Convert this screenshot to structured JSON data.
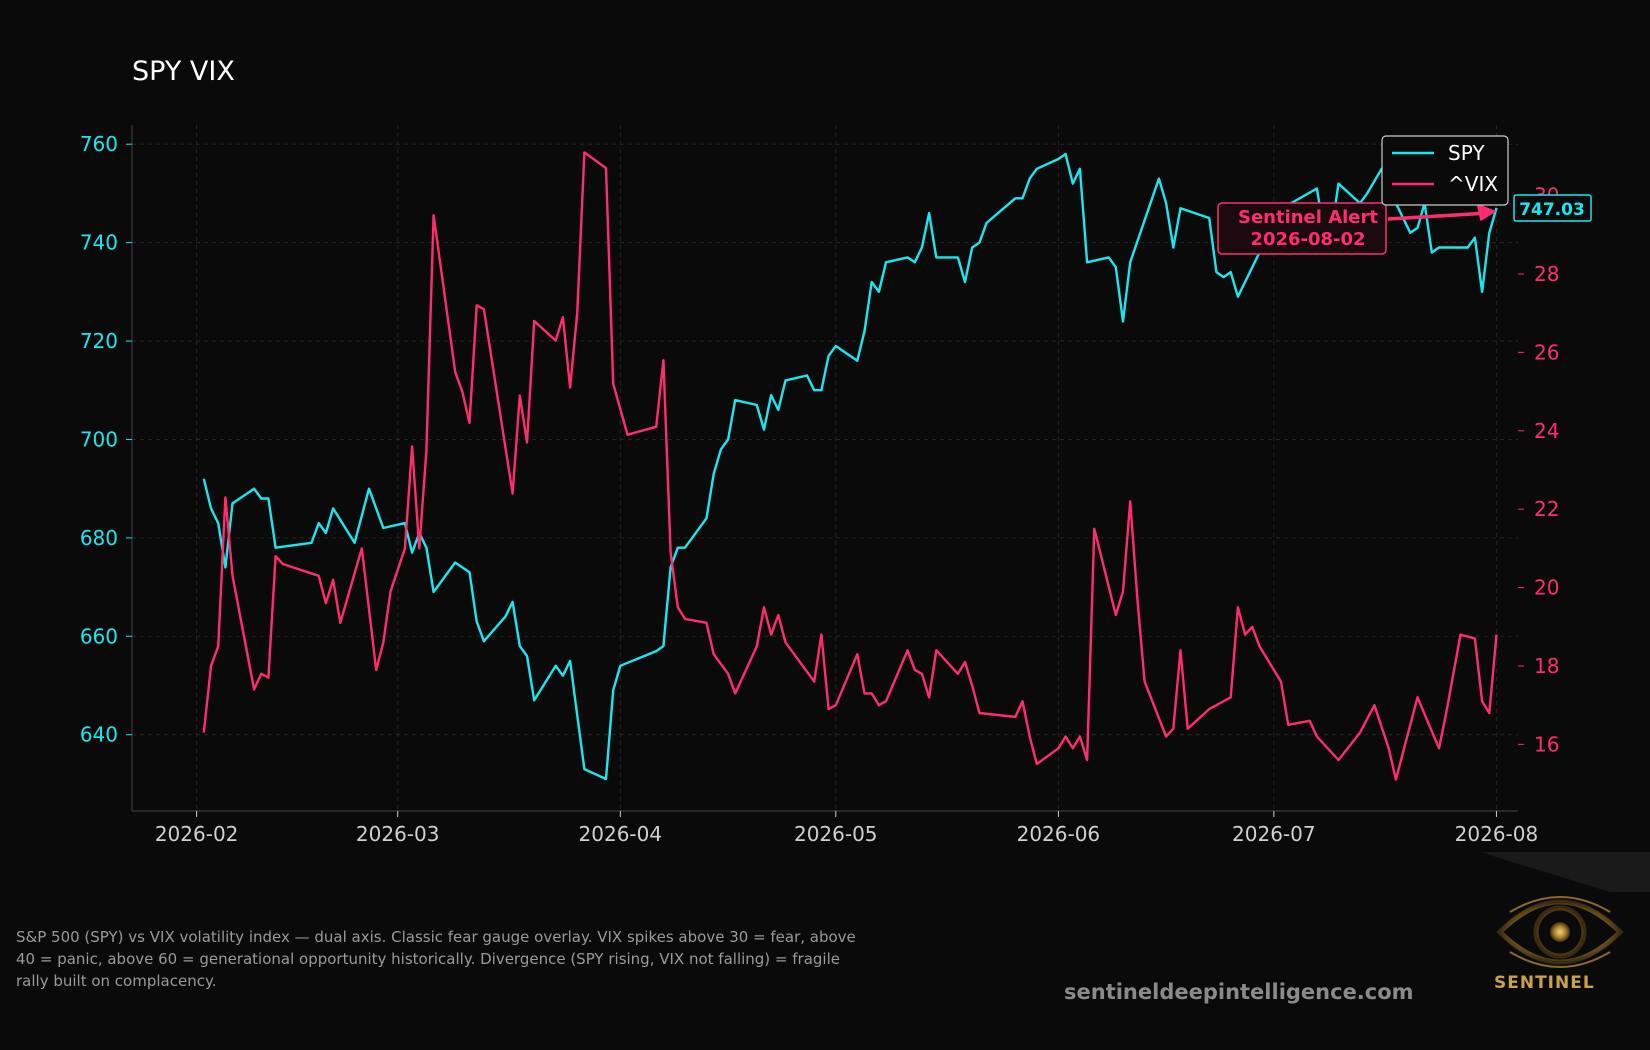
{
  "colors": {
    "spy": "#19e8f0",
    "vix": "#ff2d6e",
    "axis": "#3a3a3a",
    "grid": "#262626",
    "text": "#d0d0d0",
    "bg": "#0a0a0a"
  },
  "header": {
    "title": "SPY VIX"
  },
  "footer": {
    "caption": "S&P 500 (SPY) vs VIX volatility index — dual axis. Classic fear gauge overlay. VIX spikes above 30 = fear, above 40 = panic, above 60 = generational opportunity historically. Divergence (SPY rising, VIX not falling) = fragile rally built on complacency.",
    "site": "sentineldeepintelligence.com",
    "brand": "SENTINEL"
  },
  "chart_data": {
    "type": "line",
    "title": "SPY VIX",
    "legend_position": "top-right",
    "grid": true,
    "x_ticks": [
      "2026-02",
      "2026-03",
      "2026-04",
      "2026-05",
      "2026-06",
      "2026-07",
      "2026-08"
    ],
    "x_range": [
      "2026-01-23",
      "2026-08-04"
    ],
    "y_left": {
      "ticks": [
        640,
        660,
        680,
        700,
        720,
        740,
        760
      ],
      "range": [
        624.5,
        763.9
      ]
    },
    "y_right": {
      "ticks": [
        16,
        18,
        20,
        22,
        24,
        26,
        28,
        30
      ],
      "range": [
        14.3,
        31.8
      ]
    },
    "annotation": {
      "line1": "Sentinel Alert",
      "line2": "2026-08-02",
      "arrow_to": [
        "2026-08-01",
        29.6
      ]
    },
    "last_value_label": "747.03",
    "series": [
      {
        "name": "SPY",
        "axis": "left",
        "data": [
          [
            "2026-02-02",
            692
          ],
          [
            "2026-02-03",
            686
          ],
          [
            "2026-02-04",
            683
          ],
          [
            "2026-02-05",
            674
          ],
          [
            "2026-02-06",
            687
          ],
          [
            "2026-02-09",
            690
          ],
          [
            "2026-02-10",
            688
          ],
          [
            "2026-02-11",
            688
          ],
          [
            "2026-02-12",
            678
          ],
          [
            "2026-02-17",
            679
          ],
          [
            "2026-02-18",
            683
          ],
          [
            "2026-02-19",
            681
          ],
          [
            "2026-02-20",
            686
          ],
          [
            "2026-02-23",
            679
          ],
          [
            "2026-02-25",
            690
          ],
          [
            "2026-02-27",
            682
          ],
          [
            "2026-03-02",
            683
          ],
          [
            "2026-03-03",
            677
          ],
          [
            "2026-03-04",
            681
          ],
          [
            "2026-03-05",
            678
          ],
          [
            "2026-03-06",
            669
          ],
          [
            "2026-03-09",
            675
          ],
          [
            "2026-03-10",
            674
          ],
          [
            "2026-03-11",
            673
          ],
          [
            "2026-03-12",
            663
          ],
          [
            "2026-03-13",
            659
          ],
          [
            "2026-03-16",
            664
          ],
          [
            "2026-03-17",
            667
          ],
          [
            "2026-03-18",
            658
          ],
          [
            "2026-03-19",
            656
          ],
          [
            "2026-03-20",
            647
          ],
          [
            "2026-03-23",
            654
          ],
          [
            "2026-03-24",
            652
          ],
          [
            "2026-03-25",
            655
          ],
          [
            "2026-03-26",
            644
          ],
          [
            "2026-03-27",
            633
          ],
          [
            "2026-03-30",
            631
          ],
          [
            "2026-03-31",
            649
          ],
          [
            "2026-04-01",
            654
          ],
          [
            "2026-04-06",
            657
          ],
          [
            "2026-04-07",
            658
          ],
          [
            "2026-04-08",
            674
          ],
          [
            "2026-04-09",
            678
          ],
          [
            "2026-04-10",
            678
          ],
          [
            "2026-04-13",
            684
          ],
          [
            "2026-04-14",
            693
          ],
          [
            "2026-04-15",
            698
          ],
          [
            "2026-04-16",
            700
          ],
          [
            "2026-04-17",
            708
          ],
          [
            "2026-04-20",
            707
          ],
          [
            "2026-04-21",
            702
          ],
          [
            "2026-04-22",
            709
          ],
          [
            "2026-04-23",
            706
          ],
          [
            "2026-04-24",
            712
          ],
          [
            "2026-04-27",
            713
          ],
          [
            "2026-04-28",
            710
          ],
          [
            "2026-04-29",
            710
          ],
          [
            "2026-04-30",
            717
          ],
          [
            "2026-05-01",
            719
          ],
          [
            "2026-05-04",
            716
          ],
          [
            "2026-05-05",
            722
          ],
          [
            "2026-05-06",
            732
          ],
          [
            "2026-05-07",
            730
          ],
          [
            "2026-05-08",
            736
          ],
          [
            "2026-05-11",
            737
          ],
          [
            "2026-05-12",
            736
          ],
          [
            "2026-05-13",
            739
          ],
          [
            "2026-05-14",
            746
          ],
          [
            "2026-05-15",
            737
          ],
          [
            "2026-05-18",
            737
          ],
          [
            "2026-05-19",
            732
          ],
          [
            "2026-05-20",
            739
          ],
          [
            "2026-05-21",
            740
          ],
          [
            "2026-05-22",
            744
          ],
          [
            "2026-05-26",
            749
          ],
          [
            "2026-05-27",
            749
          ],
          [
            "2026-05-28",
            753
          ],
          [
            "2026-05-29",
            755
          ],
          [
            "2026-06-01",
            757
          ],
          [
            "2026-06-02",
            758
          ],
          [
            "2026-06-03",
            752
          ],
          [
            "2026-06-04",
            755
          ],
          [
            "2026-06-05",
            736
          ],
          [
            "2026-06-08",
            737
          ],
          [
            "2026-06-09",
            735
          ],
          [
            "2026-06-10",
            724
          ],
          [
            "2026-06-11",
            736
          ],
          [
            "2026-06-15",
            753
          ],
          [
            "2026-06-16",
            748
          ],
          [
            "2026-06-17",
            739
          ],
          [
            "2026-06-18",
            747
          ],
          [
            "2026-06-22",
            745
          ],
          [
            "2026-06-23",
            734
          ],
          [
            "2026-06-24",
            733
          ],
          [
            "2026-06-25",
            734
          ],
          [
            "2026-06-26",
            729
          ],
          [
            "2026-06-29",
            738
          ],
          [
            "2026-06-30",
            744
          ],
          [
            "2026-07-01",
            746
          ],
          [
            "2026-07-07",
            751
          ],
          [
            "2026-07-08",
            742
          ],
          [
            "2026-07-09",
            742
          ],
          [
            "2026-07-10",
            752
          ],
          [
            "2026-07-13",
            748
          ],
          [
            "2026-07-14",
            750
          ],
          [
            "2026-07-16",
            755
          ],
          [
            "2026-07-17",
            751
          ],
          [
            "2026-07-20",
            742
          ],
          [
            "2026-07-21",
            743
          ],
          [
            "2026-07-22",
            748
          ],
          [
            "2026-07-23",
            738
          ],
          [
            "2026-07-24",
            739
          ],
          [
            "2026-07-28",
            739
          ],
          [
            "2026-07-29",
            741
          ],
          [
            "2026-07-30",
            730
          ],
          [
            "2026-07-31",
            742
          ],
          [
            "2026-08-01",
            747.03
          ]
        ]
      },
      {
        "name": "^VIX",
        "axis": "right",
        "data": [
          [
            "2026-02-02",
            16.3
          ],
          [
            "2026-02-03",
            18.0
          ],
          [
            "2026-02-04",
            18.5
          ],
          [
            "2026-02-05",
            22.3
          ],
          [
            "2026-02-06",
            20.3
          ],
          [
            "2026-02-09",
            17.4
          ],
          [
            "2026-02-10",
            17.8
          ],
          [
            "2026-02-11",
            17.7
          ],
          [
            "2026-02-12",
            20.8
          ],
          [
            "2026-02-13",
            20.6
          ],
          [
            "2026-02-18",
            20.3
          ],
          [
            "2026-02-19",
            19.6
          ],
          [
            "2026-02-20",
            20.2
          ],
          [
            "2026-02-21",
            19.1
          ],
          [
            "2026-02-24",
            21.0
          ],
          [
            "2026-02-26",
            17.9
          ],
          [
            "2026-02-27",
            18.6
          ],
          [
            "2026-02-28",
            19.9
          ],
          [
            "2026-03-02",
            21.0
          ],
          [
            "2026-03-03",
            23.6
          ],
          [
            "2026-03-04",
            21.0
          ],
          [
            "2026-03-05",
            23.5
          ],
          [
            "2026-03-06",
            29.5
          ],
          [
            "2026-03-09",
            25.5
          ],
          [
            "2026-03-10",
            25.0
          ],
          [
            "2026-03-11",
            24.2
          ],
          [
            "2026-03-12",
            27.2
          ],
          [
            "2026-03-13",
            27.1
          ],
          [
            "2026-03-17",
            22.4
          ],
          [
            "2026-03-18",
            24.9
          ],
          [
            "2026-03-19",
            23.7
          ],
          [
            "2026-03-20",
            26.8
          ],
          [
            "2026-03-23",
            26.3
          ],
          [
            "2026-03-24",
            26.9
          ],
          [
            "2026-03-25",
            25.1
          ],
          [
            "2026-03-26",
            27.0
          ],
          [
            "2026-03-27",
            31.1
          ],
          [
            "2026-03-30",
            30.7
          ],
          [
            "2026-03-31",
            25.2
          ],
          [
            "2026-04-02",
            23.9
          ],
          [
            "2026-04-06",
            24.1
          ],
          [
            "2026-04-07",
            25.8
          ],
          [
            "2026-04-08",
            20.9
          ],
          [
            "2026-04-09",
            19.5
          ],
          [
            "2026-04-10",
            19.2
          ],
          [
            "2026-04-13",
            19.1
          ],
          [
            "2026-04-14",
            18.3
          ],
          [
            "2026-04-16",
            17.8
          ],
          [
            "2026-04-17",
            17.3
          ],
          [
            "2026-04-20",
            18.5
          ],
          [
            "2026-04-21",
            19.5
          ],
          [
            "2026-04-22",
            18.8
          ],
          [
            "2026-04-23",
            19.3
          ],
          [
            "2026-04-24",
            18.6
          ],
          [
            "2026-04-28",
            17.6
          ],
          [
            "2026-04-29",
            18.8
          ],
          [
            "2026-04-30",
            16.9
          ],
          [
            "2026-05-01",
            17.0
          ],
          [
            "2026-05-04",
            18.3
          ],
          [
            "2026-05-05",
            17.3
          ],
          [
            "2026-05-06",
            17.3
          ],
          [
            "2026-05-07",
            17.0
          ],
          [
            "2026-05-08",
            17.1
          ],
          [
            "2026-05-11",
            18.4
          ],
          [
            "2026-05-12",
            17.9
          ],
          [
            "2026-05-13",
            17.8
          ],
          [
            "2026-05-14",
            17.2
          ],
          [
            "2026-05-15",
            18.4
          ],
          [
            "2026-05-18",
            17.8
          ],
          [
            "2026-05-19",
            18.1
          ],
          [
            "2026-05-20",
            17.5
          ],
          [
            "2026-05-21",
            16.8
          ],
          [
            "2026-05-26",
            16.7
          ],
          [
            "2026-05-27",
            17.1
          ],
          [
            "2026-05-28",
            16.2
          ],
          [
            "2026-05-29",
            15.5
          ],
          [
            "2026-06-01",
            15.9
          ],
          [
            "2026-06-02",
            16.2
          ],
          [
            "2026-06-03",
            15.9
          ],
          [
            "2026-06-04",
            16.2
          ],
          [
            "2026-06-05",
            15.6
          ],
          [
            "2026-06-06",
            21.5
          ],
          [
            "2026-06-09",
            19.3
          ],
          [
            "2026-06-10",
            19.9
          ],
          [
            "2026-06-11",
            22.2
          ],
          [
            "2026-06-12",
            19.7
          ],
          [
            "2026-06-13",
            17.6
          ],
          [
            "2026-06-16",
            16.2
          ],
          [
            "2026-06-17",
            16.4
          ],
          [
            "2026-06-18",
            18.4
          ],
          [
            "2026-06-19",
            16.4
          ],
          [
            "2026-06-22",
            16.9
          ],
          [
            "2026-06-25",
            17.2
          ],
          [
            "2026-06-26",
            19.5
          ],
          [
            "2026-06-27",
            18.8
          ],
          [
            "2026-06-28",
            19.0
          ],
          [
            "2026-06-29",
            18.5
          ],
          [
            "2026-07-02",
            17.6
          ],
          [
            "2026-07-03",
            16.5
          ],
          [
            "2026-07-06",
            16.6
          ],
          [
            "2026-07-07",
            16.2
          ],
          [
            "2026-07-10",
            15.6
          ],
          [
            "2026-07-13",
            16.3
          ],
          [
            "2026-07-15",
            17.0
          ],
          [
            "2026-07-17",
            15.9
          ],
          [
            "2026-07-18",
            15.1
          ],
          [
            "2026-07-21",
            17.2
          ],
          [
            "2026-07-24",
            15.9
          ],
          [
            "2026-07-25",
            16.8
          ],
          [
            "2026-07-27",
            18.8
          ],
          [
            "2026-07-29",
            18.7
          ],
          [
            "2026-07-30",
            17.1
          ],
          [
            "2026-07-31",
            16.8
          ],
          [
            "2026-08-01",
            18.8
          ]
        ]
      }
    ]
  }
}
